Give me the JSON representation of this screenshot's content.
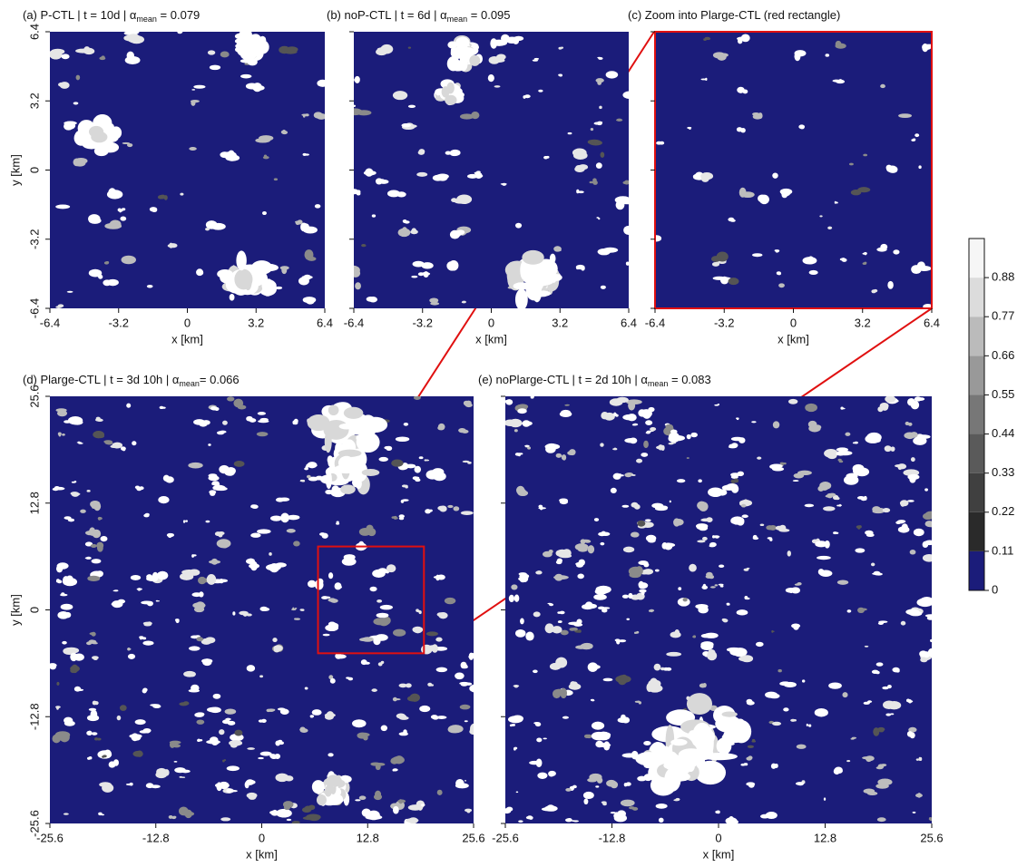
{
  "chart_data": [
    {
      "type": "heatmap",
      "title_parts": [
        "(a) P-CTL | t = 10d | α",
        "mean",
        " = 0.079"
      ],
      "xlabel": "x [km]",
      "ylabel": "y [km]",
      "xlim": [
        -6.4,
        6.4
      ],
      "ylim": [
        -6.4,
        6.4
      ],
      "xticks": [
        -6.4,
        -3.2,
        0,
        3.2,
        6.4
      ],
      "yticks": [
        -6.4,
        -3.2,
        0,
        3.2,
        6.4
      ],
      "show_ytick_labels": true
    },
    {
      "type": "heatmap",
      "title_parts": [
        "(b) noP-CTL | t = 6d | α",
        "mean",
        " = 0.095"
      ],
      "xlabel": "x [km]",
      "xlim": [
        -6.4,
        6.4
      ],
      "ylim": [
        -6.4,
        6.4
      ],
      "xticks": [
        -6.4,
        -3.2,
        0,
        3.2,
        6.4
      ],
      "yticks": [
        -6.4,
        -3.2,
        0,
        3.2,
        6.4
      ],
      "show_ytick_labels": false
    },
    {
      "type": "heatmap",
      "title_parts": [
        "(c) Zoom into Plarge-CTL (red rectangle)"
      ],
      "xlabel": "x [km]",
      "xlim": [
        -6.4,
        6.4
      ],
      "ylim": [
        -6.4,
        6.4
      ],
      "xticks": [
        -6.4,
        -3.2,
        0,
        3.2,
        6.4
      ],
      "yticks": [
        -6.4,
        -3.2,
        0,
        3.2,
        6.4
      ],
      "show_ytick_labels": false,
      "frame_color": "#e01010"
    },
    {
      "type": "heatmap",
      "title_parts": [
        "(d) Plarge-CTL | t = 3d 10h | α",
        "mean",
        "= 0.066"
      ],
      "xlabel": "x [km]",
      "ylabel": "y [km]",
      "xlim": [
        -25.6,
        25.6
      ],
      "ylim": [
        -25.6,
        25.6
      ],
      "xticks": [
        -25.6,
        -12.8,
        0,
        12.8,
        25.6
      ],
      "yticks": [
        -25.6,
        -12.8,
        0,
        12.8,
        25.6
      ],
      "show_ytick_labels": true,
      "zoom_box": {
        "xlim": [
          6.8,
          19.6
        ],
        "ylim": [
          -5.2,
          7.6
        ],
        "color": "#e01010"
      }
    },
    {
      "type": "heatmap",
      "title_parts": [
        "(e) noPlarge-CTL | t = 2d 10h | α",
        "mean",
        " = 0.083"
      ],
      "xlabel": "x [km]",
      "xlim": [
        -25.6,
        25.6
      ],
      "ylim": [
        -25.6,
        25.6
      ],
      "xticks": [
        -25.6,
        -12.8,
        0,
        12.8,
        25.6
      ],
      "yticks": [
        -25.6,
        -12.8,
        0,
        12.8,
        25.6
      ],
      "show_ytick_labels": false
    },
    {
      "type": "colorbar",
      "lim": [
        0,
        0.99
      ],
      "ticks": [
        0,
        0.11,
        0.22,
        0.33,
        0.44,
        0.55,
        0.66,
        0.77,
        0.88
      ],
      "colors": [
        "#1b1c7a",
        "#2a2a2a",
        "#404040",
        "#5a5a5a",
        "#777777",
        "#999999",
        "#bbbbbb",
        "#dcdcdc",
        "#f6f6f6"
      ]
    }
  ]
}
